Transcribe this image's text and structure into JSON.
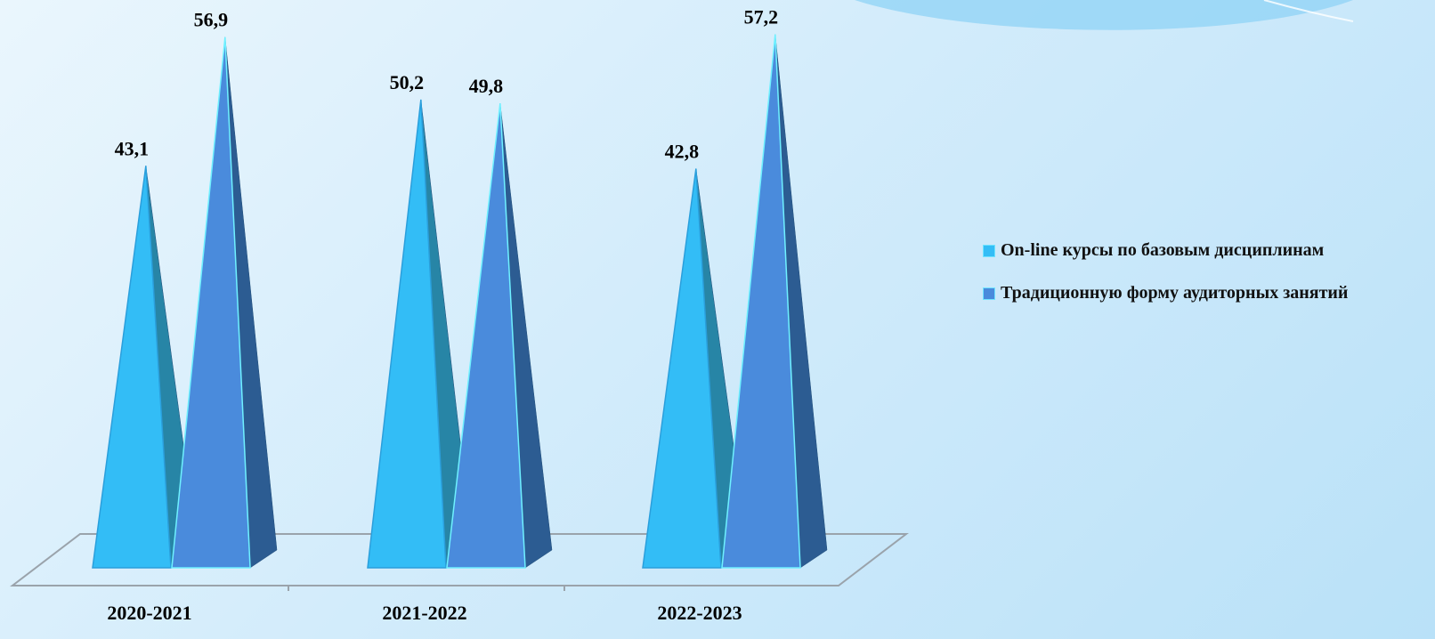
{
  "chart_data": {
    "type": "bar",
    "shape": "3d-cone",
    "categories": [
      "2020-2021",
      "2021-2022",
      "2022-2023"
    ],
    "series": [
      {
        "name": "On-line курсы по базовым дисциплинам",
        "values": [
          43.1,
          50.2,
          42.8
        ],
        "labels": [
          "43,1",
          "50,2",
          "42,8"
        ],
        "color": "#33bdf6",
        "side_color": "#2785a6"
      },
      {
        "name": "Традиционную форму аудиторных занятий",
        "values": [
          56.9,
          49.8,
          57.2
        ],
        "labels": [
          "56,9",
          "49,8",
          "57,2"
        ],
        "color": "#4a8bdc",
        "side_color": "#2c5c92"
      }
    ],
    "ylim": [
      0,
      60
    ],
    "grid": false,
    "legend_position": "right"
  }
}
